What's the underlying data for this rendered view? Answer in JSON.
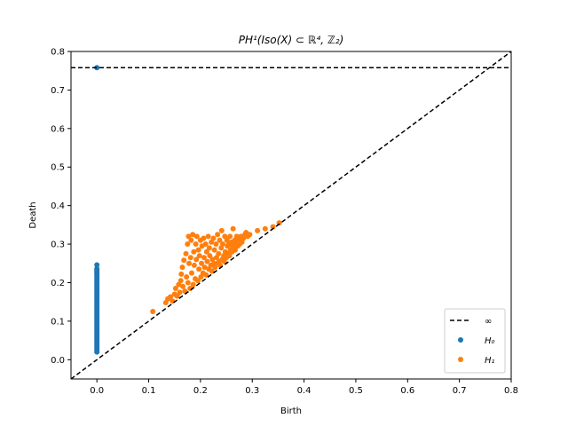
{
  "chart_data": {
    "type": "scatter",
    "title": "PH¹(Iso(X) ⊂ ℝ⁴, ℤ₂)",
    "xlabel": "Birth",
    "ylabel": "Death",
    "xlim": [
      -0.05,
      0.8
    ],
    "ylim": [
      -0.05,
      0.8
    ],
    "x_ticks": [
      "0.0",
      "0.1",
      "0.2",
      "0.3",
      "0.4",
      "0.5",
      "0.6",
      "0.7",
      "0.8"
    ],
    "y_ticks": [
      "0.0",
      "0.1",
      "0.2",
      "0.3",
      "0.4",
      "0.5",
      "0.6",
      "0.7",
      "0.8"
    ],
    "infinity_level": 0.758,
    "diagonal": true,
    "grid": false,
    "legend_position": "bottom-right",
    "legend": [
      "∞",
      "H₀",
      "H₁"
    ],
    "colors": {
      "H0": "#1f77b4",
      "H1": "#ff7f0e",
      "reference": "#000000"
    },
    "series": [
      {
        "name": "H₀",
        "points": [
          [
            0.0,
            0.758
          ],
          [
            0.0,
            0.246
          ],
          [
            0.0,
            0.236
          ],
          [
            0.0,
            0.232
          ],
          [
            0.0,
            0.228
          ],
          [
            0.0,
            0.224
          ],
          [
            0.0,
            0.22
          ],
          [
            0.0,
            0.215
          ],
          [
            0.0,
            0.21
          ],
          [
            0.0,
            0.205
          ],
          [
            0.0,
            0.2
          ],
          [
            0.0,
            0.195
          ],
          [
            0.0,
            0.19
          ],
          [
            0.0,
            0.185
          ],
          [
            0.0,
            0.18
          ],
          [
            0.0,
            0.175
          ],
          [
            0.0,
            0.17
          ],
          [
            0.0,
            0.165
          ],
          [
            0.0,
            0.16
          ],
          [
            0.0,
            0.155
          ],
          [
            0.0,
            0.15
          ],
          [
            0.0,
            0.145
          ],
          [
            0.0,
            0.14
          ],
          [
            0.0,
            0.135
          ],
          [
            0.0,
            0.13
          ],
          [
            0.0,
            0.125
          ],
          [
            0.0,
            0.12
          ],
          [
            0.0,
            0.115
          ],
          [
            0.0,
            0.11
          ],
          [
            0.0,
            0.105
          ],
          [
            0.0,
            0.1
          ],
          [
            0.0,
            0.095
          ],
          [
            0.0,
            0.09
          ],
          [
            0.0,
            0.085
          ],
          [
            0.0,
            0.08
          ],
          [
            0.0,
            0.075
          ],
          [
            0.0,
            0.07
          ],
          [
            0.0,
            0.065
          ],
          [
            0.0,
            0.06
          ],
          [
            0.0,
            0.055
          ],
          [
            0.0,
            0.05
          ],
          [
            0.0,
            0.045
          ],
          [
            0.0,
            0.04
          ],
          [
            0.0,
            0.035
          ],
          [
            0.0,
            0.03
          ],
          [
            0.0,
            0.025
          ],
          [
            0.0,
            0.02
          ]
        ]
      },
      {
        "name": "H₁",
        "points": [
          [
            0.108,
            0.125
          ],
          [
            0.133,
            0.148
          ],
          [
            0.137,
            0.158
          ],
          [
            0.142,
            0.163
          ],
          [
            0.146,
            0.152
          ],
          [
            0.15,
            0.17
          ],
          [
            0.152,
            0.185
          ],
          [
            0.155,
            0.165
          ],
          [
            0.158,
            0.195
          ],
          [
            0.16,
            0.175
          ],
          [
            0.162,
            0.205
          ],
          [
            0.163,
            0.222
          ],
          [
            0.165,
            0.24
          ],
          [
            0.166,
            0.19
          ],
          [
            0.168,
            0.258
          ],
          [
            0.17,
            0.178
          ],
          [
            0.172,
            0.275
          ],
          [
            0.173,
            0.215
          ],
          [
            0.175,
            0.3
          ],
          [
            0.176,
            0.2
          ],
          [
            0.177,
            0.32
          ],
          [
            0.178,
            0.25
          ],
          [
            0.18,
            0.185
          ],
          [
            0.181,
            0.265
          ],
          [
            0.182,
            0.31
          ],
          [
            0.183,
            0.225
          ],
          [
            0.185,
            0.325
          ],
          [
            0.186,
            0.195
          ],
          [
            0.187,
            0.28
          ],
          [
            0.188,
            0.245
          ],
          [
            0.19,
            0.21
          ],
          [
            0.191,
            0.3
          ],
          [
            0.192,
            0.26
          ],
          [
            0.193,
            0.32
          ],
          [
            0.195,
            0.205
          ],
          [
            0.196,
            0.285
          ],
          [
            0.197,
            0.235
          ],
          [
            0.198,
            0.27
          ],
          [
            0.2,
            0.31
          ],
          [
            0.201,
            0.215
          ],
          [
            0.202,
            0.25
          ],
          [
            0.203,
            0.295
          ],
          [
            0.205,
            0.225
          ],
          [
            0.206,
            0.315
          ],
          [
            0.207,
            0.265
          ],
          [
            0.208,
            0.24
          ],
          [
            0.21,
            0.3
          ],
          [
            0.211,
            0.22
          ],
          [
            0.212,
            0.28
          ],
          [
            0.213,
            0.255
          ],
          [
            0.215,
            0.32
          ],
          [
            0.216,
            0.235
          ],
          [
            0.217,
            0.29
          ],
          [
            0.218,
            0.27
          ],
          [
            0.22,
            0.245
          ],
          [
            0.221,
            0.305
          ],
          [
            0.222,
            0.23
          ],
          [
            0.223,
            0.26
          ],
          [
            0.225,
            0.315
          ],
          [
            0.226,
            0.25
          ],
          [
            0.227,
            0.285
          ],
          [
            0.228,
            0.24
          ],
          [
            0.23,
            0.3
          ],
          [
            0.231,
            0.265
          ],
          [
            0.232,
            0.25
          ],
          [
            0.233,
            0.325
          ],
          [
            0.235,
            0.275
          ],
          [
            0.236,
            0.255
          ],
          [
            0.237,
            0.31
          ],
          [
            0.238,
            0.245
          ],
          [
            0.24,
            0.29
          ],
          [
            0.241,
            0.335
          ],
          [
            0.242,
            0.26
          ],
          [
            0.243,
            0.3
          ],
          [
            0.245,
            0.27
          ],
          [
            0.246,
            0.255
          ],
          [
            0.247,
            0.32
          ],
          [
            0.248,
            0.28
          ],
          [
            0.25,
            0.265
          ],
          [
            0.251,
            0.31
          ],
          [
            0.252,
            0.295
          ],
          [
            0.253,
            0.275
          ],
          [
            0.255,
            0.3
          ],
          [
            0.256,
            0.27
          ],
          [
            0.257,
            0.32
          ],
          [
            0.258,
            0.285
          ],
          [
            0.26,
            0.305
          ],
          [
            0.261,
            0.28
          ],
          [
            0.262,
            0.295
          ],
          [
            0.263,
            0.34
          ],
          [
            0.265,
            0.29
          ],
          [
            0.266,
            0.31
          ],
          [
            0.267,
            0.285
          ],
          [
            0.268,
            0.3
          ],
          [
            0.27,
            0.32
          ],
          [
            0.272,
            0.295
          ],
          [
            0.274,
            0.31
          ],
          [
            0.276,
            0.3
          ],
          [
            0.278,
            0.32
          ],
          [
            0.28,
            0.305
          ],
          [
            0.283,
            0.315
          ],
          [
            0.286,
            0.325
          ],
          [
            0.288,
            0.33
          ],
          [
            0.291,
            0.32
          ],
          [
            0.295,
            0.325
          ],
          [
            0.31,
            0.335
          ],
          [
            0.325,
            0.34
          ],
          [
            0.34,
            0.345
          ],
          [
            0.352,
            0.355
          ]
        ]
      }
    ]
  }
}
